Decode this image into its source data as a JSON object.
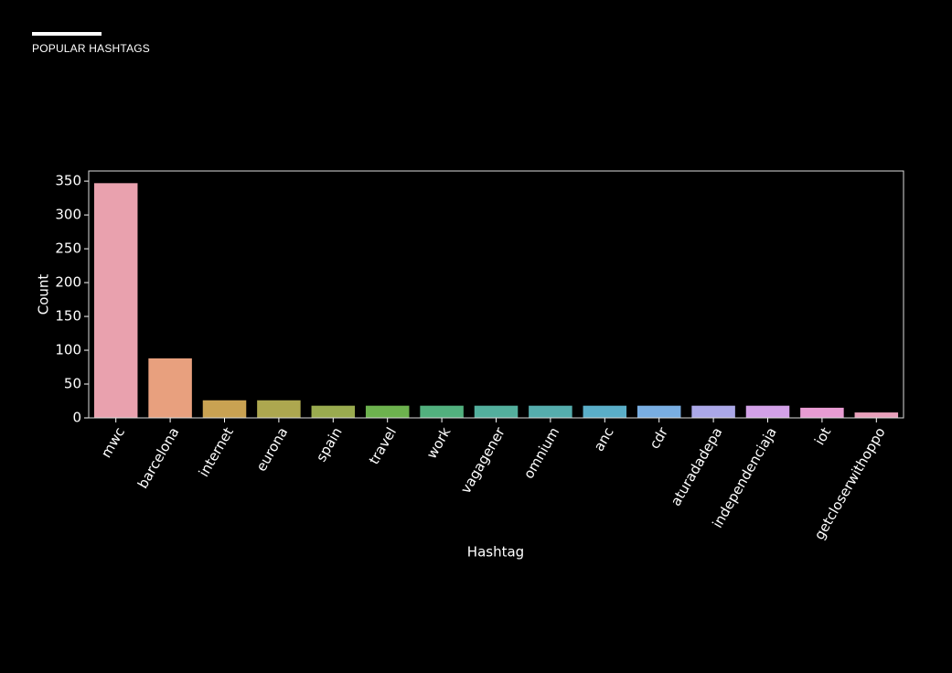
{
  "header": {
    "title": "POPULAR HASHTAGS"
  },
  "chart_data": {
    "type": "bar",
    "xlabel": "Hashtag",
    "ylabel": "Count",
    "categories": [
      "mwc",
      "barcelona",
      "internet",
      "eurona",
      "spain",
      "travel",
      "work",
      "vagagener",
      "omnium",
      "anc",
      "cdr",
      "aturadadepa",
      "independenciaja",
      "iot",
      "getcloserwithoppo"
    ],
    "values": [
      347,
      88,
      26,
      26,
      18,
      18,
      18,
      18,
      18,
      18,
      18,
      18,
      18,
      15,
      8
    ],
    "colors": [
      "#e9a1ae",
      "#e8a07e",
      "#c9a252",
      "#ada74f",
      "#9aab4f",
      "#6db24e",
      "#52b07e",
      "#53af9d",
      "#55adad",
      "#5aaec8",
      "#79aee2",
      "#aba8e8",
      "#d3a1e8",
      "#e89cd3",
      "#e8a0bb"
    ],
    "ylim": [
      0,
      365
    ],
    "yticks": [
      0,
      50,
      100,
      150,
      200,
      250,
      300,
      350
    ],
    "grid": false
  }
}
